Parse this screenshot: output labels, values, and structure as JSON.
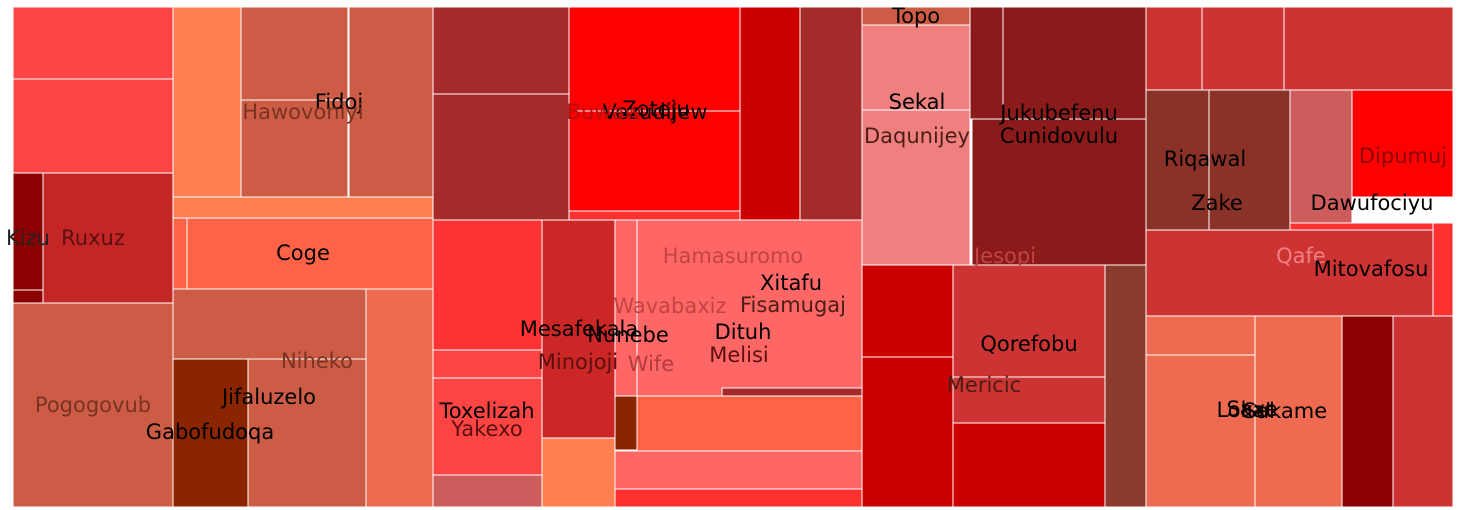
{
  "chart_data": {
    "type": "treemap",
    "title": "",
    "groups": [
      {
        "name": "group-1",
        "children": [
          {
            "label": "Kizu",
            "color": "#8b0000",
            "text_color": "#222222"
          },
          {
            "label": "Ruxuz",
            "color": "#c42525",
            "text_color": "#5a1010"
          },
          {
            "label": "",
            "color": "#ff4444"
          },
          {
            "label": "",
            "color": "#ff4444"
          },
          {
            "label": "Fidoj",
            "color": "#cd5c46",
            "text_color": "#000000"
          },
          {
            "label": "Hawovoniyi",
            "color": "#cd5c46",
            "text_color": "#7a3322"
          },
          {
            "label": "",
            "color": "#ff7f50"
          },
          {
            "label": "Coge",
            "color": "#ff6347",
            "text_color": "#000000"
          },
          {
            "label": "Niheko",
            "color": "#cd5c46",
            "text_color": "#7a3322"
          },
          {
            "label": "Pogogovub",
            "color": "#cd5c46",
            "text_color": "#7a3322"
          },
          {
            "label": "Jifaluzelo",
            "color": "#cd5c46",
            "text_color": "#000000"
          },
          {
            "label": "Gabofudoqa",
            "color": "#8b2500",
            "text_color": "#000000"
          }
        ]
      },
      {
        "name": "group-2",
        "children": [
          {
            "label": "Vezudijew",
            "color": "#ff0000",
            "text_color": "#000000"
          },
          {
            "label": "Zoteju",
            "color": "#ff0000",
            "text_color": "#000000"
          },
          {
            "label": "Buwaw",
            "color": "#ff0000",
            "text_color": "#b31010"
          },
          {
            "label": "Hamasuromo",
            "color": "#ff6666",
            "text_color": "#c24444"
          },
          {
            "label": "Xitafu",
            "color": "#8b3a2e",
            "text_color": "#000000"
          },
          {
            "label": "Fisamugaj",
            "color": "#8b3a2e",
            "text_color": "#4a1d15"
          },
          {
            "label": "Wavabaxiz",
            "color": "#ff6666",
            "text_color": "#c24444"
          },
          {
            "label": "Mesafekala",
            "color": "#cd2626",
            "text_color": "#000000"
          },
          {
            "label": "Nunebe",
            "color": "#8b2500",
            "text_color": "#000000"
          },
          {
            "label": "Dituh",
            "color": "#8b3a2e",
            "text_color": "#000000"
          },
          {
            "label": "Melisi",
            "color": "#a52a2a",
            "text_color": "#5a1010"
          },
          {
            "label": "Minojoji",
            "color": "#cd2626",
            "text_color": "#5a1010"
          },
          {
            "label": "Wife",
            "color": "#ff6666",
            "text_color": "#b33c3c"
          },
          {
            "label": "Toxelizah",
            "color": "#ff3333",
            "text_color": "#000000"
          },
          {
            "label": "Yakexo",
            "color": "#ff4444",
            "text_color": "#5a1010"
          }
        ]
      },
      {
        "name": "group-3",
        "children": [
          {
            "label": "Topo",
            "color": "#cd5c46",
            "text_color": "#000000"
          },
          {
            "label": "Sekal",
            "color": "#f08080",
            "text_color": "#000000"
          },
          {
            "label": "Daqunijey",
            "color": "#f08080",
            "text_color": "#4a1d15"
          },
          {
            "label": "Jukubefenu",
            "color": "#8b1a1a",
            "text_color": "#000000"
          },
          {
            "label": "Cunidovulu",
            "color": "#8b1a1a",
            "text_color": "#000000"
          },
          {
            "label": "Jesopi",
            "color": "#8b1a1a",
            "text_color": "#c24444"
          },
          {
            "label": "Qorefobu",
            "color": "#cd3333",
            "text_color": "#000000"
          },
          {
            "label": "Mericic",
            "color": "#cd0000",
            "text_color": "#4a1d15"
          }
        ]
      },
      {
        "name": "group-4",
        "children": [
          {
            "label": "Riqawal",
            "color": "#8b3228",
            "text_color": "#000000"
          },
          {
            "label": "Zake",
            "color": "#8b3228",
            "text_color": "#000000"
          },
          {
            "label": "Dipumuj",
            "color": "#ff0000",
            "text_color": "#8b0000"
          },
          {
            "label": "Dawufociyu",
            "color": "#cd5c5c",
            "text_color": "#000000"
          },
          {
            "label": "Qafe",
            "color": "#cd3333",
            "text_color": "#f08080"
          },
          {
            "label": "Mitovafosu",
            "color": "#ff3030",
            "text_color": "#000000"
          },
          {
            "label": "Lokat",
            "color": "#ee6a50",
            "text_color": "#000000"
          },
          {
            "label": "Sakame",
            "color": "#ee6a50",
            "text_color": "#000000"
          },
          {
            "label": "Saxe",
            "color": "#ee6a50",
            "text_color": "#000000"
          }
        ]
      }
    ]
  }
}
